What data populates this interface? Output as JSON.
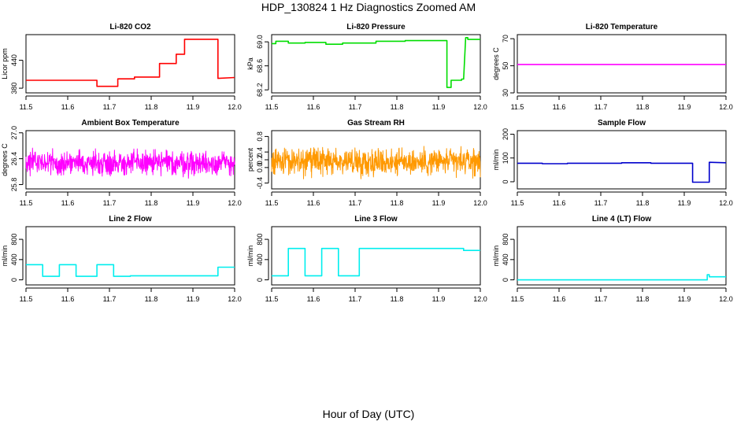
{
  "figure": {
    "title": "HDP_130824  1 Hz Diagnostics Zoomed AM",
    "xlabel": "Hour of Day (UTC)"
  },
  "chart_data": [
    {
      "type": "line",
      "title": "Li-820 CO2",
      "ylabel": "Licor ppm",
      "xlim": [
        11.5,
        12.0
      ],
      "xticks": [
        "11.5",
        "11.6",
        "11.7",
        "11.8",
        "11.9",
        "12.0"
      ],
      "ylim": [
        370,
        495
      ],
      "yticks": [
        "380",
        "440"
      ],
      "color": "#ff0000",
      "x": [
        11.5,
        11.67,
        11.67,
        11.72,
        11.72,
        11.76,
        11.76,
        11.82,
        11.82,
        11.86,
        11.86,
        11.88,
        11.88,
        11.96,
        11.96,
        12.0
      ],
      "y": [
        397,
        397,
        384,
        384,
        400,
        400,
        404,
        404,
        433,
        433,
        453,
        453,
        485,
        485,
        401,
        403
      ]
    },
    {
      "type": "line",
      "title": "Li-820 Pressure",
      "ylabel": "kPa",
      "xlim": [
        11.5,
        12.0
      ],
      "xticks": [
        "11.5",
        "11.6",
        "11.7",
        "11.8",
        "11.9",
        "12.0"
      ],
      "ylim": [
        68.15,
        69.12
      ],
      "yticks": [
        "68.2",
        "68.6",
        "69.0"
      ],
      "color": "#00dd00",
      "x": [
        11.5,
        11.51,
        11.51,
        11.54,
        11.54,
        11.58,
        11.58,
        11.63,
        11.63,
        11.67,
        11.67,
        11.75,
        11.75,
        11.82,
        11.82,
        11.92,
        11.92,
        11.93,
        11.93,
        11.955,
        11.955,
        11.96,
        11.965,
        11.97,
        11.97,
        12.0
      ],
      "y": [
        68.97,
        68.97,
        69.01,
        69.01,
        68.98,
        68.98,
        68.99,
        68.99,
        68.96,
        68.96,
        68.98,
        68.98,
        69.01,
        69.01,
        69.02,
        69.02,
        68.24,
        68.24,
        68.36,
        68.36,
        68.38,
        68.38,
        69.07,
        69.07,
        69.04,
        69.04
      ]
    },
    {
      "type": "line",
      "title": "Li-820 Temperature",
      "ylabel": "degrees C",
      "xlim": [
        11.5,
        12.0
      ],
      "xticks": [
        "11.5",
        "11.6",
        "11.7",
        "11.8",
        "11.9",
        "12.0"
      ],
      "ylim": [
        30,
        73
      ],
      "yticks": [
        "30",
        "50",
        "70"
      ],
      "color": "#ff00ff",
      "x": [
        11.5,
        12.0
      ],
      "y": [
        51,
        51
      ]
    },
    {
      "type": "line",
      "title": "Ambient Box Temperature",
      "ylabel": "degrees C",
      "xlim": [
        11.5,
        12.0
      ],
      "xticks": [
        "11.5",
        "11.6",
        "11.7",
        "11.8",
        "11.9",
        "12.0"
      ],
      "ylim": [
        25.7,
        27.05
      ],
      "yticks": [
        "25.8",
        "26.4",
        "27.0"
      ],
      "color": "#ff00ff",
      "noise": {
        "mean": 26.3,
        "amplitude": 0.3,
        "points": 800
      }
    },
    {
      "type": "line",
      "title": "Gas Stream RH",
      "ylabel": "percent",
      "xlim": [
        11.5,
        12.0
      ],
      "xticks": [
        "11.5",
        "11.6",
        "11.7",
        "11.8",
        "11.9",
        "12.0"
      ],
      "ylim": [
        -0.55,
        0.95
      ],
      "yticks": [
        "-0.4",
        "0.0",
        "0.2",
        "0.4",
        "0.8"
      ],
      "color": "#ff9900",
      "noise": {
        "mean": 0.15,
        "amplitude": 0.35,
        "points": 800
      }
    },
    {
      "type": "line",
      "title": "Sample Flow",
      "ylabel": "ml/min",
      "xlim": [
        11.5,
        12.0
      ],
      "xticks": [
        "11.5",
        "11.6",
        "11.7",
        "11.8",
        "11.9",
        "12.0"
      ],
      "ylim": [
        -30,
        215
      ],
      "yticks": [
        "0",
        "100",
        "200"
      ],
      "color": "#0000cc",
      "x": [
        11.5,
        11.56,
        11.56,
        11.62,
        11.62,
        11.75,
        11.75,
        11.82,
        11.82,
        11.92,
        11.92,
        11.96,
        11.96,
        12.0
      ],
      "y": [
        78,
        78,
        76,
        76,
        78,
        78,
        80,
        80,
        78,
        78,
        -2,
        -2,
        82,
        80
      ]
    },
    {
      "type": "line",
      "title": "Line 2 Flow",
      "ylabel": "ml/min",
      "xlim": [
        11.5,
        12.0
      ],
      "xticks": [
        "11.5",
        "11.6",
        "11.7",
        "11.8",
        "11.9",
        "12.0"
      ],
      "ylim": [
        -100,
        1050
      ],
      "yticks": [
        "0",
        "400",
        "800"
      ],
      "color": "#00eeee",
      "x": [
        11.5,
        11.54,
        11.54,
        11.58,
        11.58,
        11.62,
        11.62,
        11.67,
        11.67,
        11.71,
        11.71,
        11.75,
        11.75,
        11.96,
        11.96,
        12.0
      ],
      "y": [
        300,
        300,
        70,
        70,
        300,
        300,
        70,
        70,
        300,
        300,
        70,
        70,
        80,
        80,
        250,
        250
      ]
    },
    {
      "type": "line",
      "title": "Line 3 Flow",
      "ylabel": "ml/min",
      "xlim": [
        11.5,
        12.0
      ],
      "xticks": [
        "11.5",
        "11.6",
        "11.7",
        "11.8",
        "11.9",
        "12.0"
      ],
      "ylim": [
        -100,
        1050
      ],
      "yticks": [
        "0",
        "400",
        "800"
      ],
      "color": "#00eeee",
      "x": [
        11.5,
        11.54,
        11.54,
        11.58,
        11.58,
        11.62,
        11.62,
        11.66,
        11.66,
        11.71,
        11.71,
        11.96,
        11.96,
        12.0
      ],
      "y": [
        80,
        80,
        620,
        620,
        80,
        80,
        620,
        620,
        80,
        80,
        620,
        620,
        580,
        580
      ]
    },
    {
      "type": "line",
      "title": "Line 4 (LT) Flow",
      "ylabel": "ml/min",
      "xlim": [
        11.5,
        12.0
      ],
      "xticks": [
        "11.5",
        "11.6",
        "11.7",
        "11.8",
        "11.9",
        "12.0"
      ],
      "ylim": [
        -100,
        1050
      ],
      "yticks": [
        "0",
        "400",
        "800"
      ],
      "color": "#00eeee",
      "x": [
        11.5,
        11.955,
        11.955,
        11.96,
        11.96,
        12.0
      ],
      "y": [
        0,
        0,
        100,
        100,
        60,
        60
      ]
    }
  ]
}
